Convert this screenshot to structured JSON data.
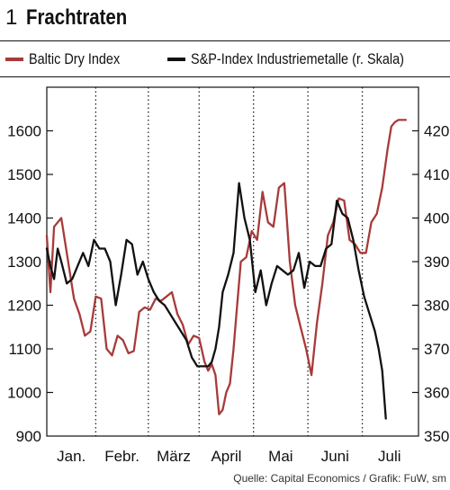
{
  "header": {
    "number": "1",
    "title": "Frachtraten"
  },
  "source": "Quelle: Capital Economics / Grafik: FuW, sm",
  "colors": {
    "baltic": "#a83a3a",
    "sp": "#111111",
    "grid": "#222222",
    "axis": "#111111"
  },
  "chart_data": {
    "type": "line",
    "title": "Frachtraten",
    "x_categories": [
      "Jan.",
      "Febr.",
      "März",
      "April",
      "Mai",
      "Juni",
      "Juli"
    ],
    "x_unit": "days since start of data (approx. 2 Jan)",
    "xlim": [
      0,
      205
    ],
    "y_left": {
      "ylim": [
        900,
        1700
      ],
      "ticks": [
        900,
        1000,
        1100,
        1200,
        1300,
        1400,
        1500,
        1600
      ]
    },
    "y_right": {
      "ylim": [
        350,
        430
      ],
      "ticks": [
        350,
        360,
        370,
        380,
        390,
        400,
        410,
        420
      ],
      "label": "r. Skala"
    },
    "grid": "vertical dotted lines between months",
    "legend_position": "top",
    "series": [
      {
        "name": "Baltic Dry Index",
        "axis": "left",
        "color": "#a83a3a",
        "x": [
          0,
          2,
          4,
          6,
          8,
          11,
          15,
          18,
          21,
          24,
          27,
          30,
          33,
          36,
          39,
          42,
          45,
          48,
          51,
          54,
          57,
          60,
          63,
          66,
          69,
          72,
          75,
          78,
          81,
          84,
          87,
          89,
          91,
          93,
          95,
          97,
          99,
          101,
          103,
          105,
          107,
          110,
          113,
          116,
          119,
          122,
          125,
          128,
          131,
          134,
          137,
          140,
          143,
          146,
          149,
          152,
          155,
          158,
          161,
          164,
          167,
          170,
          173,
          176,
          179,
          182,
          185,
          188,
          190,
          192,
          194,
          196,
          198
        ],
        "values": [
          1360,
          1230,
          1380,
          1390,
          1400,
          1320,
          1215,
          1180,
          1130,
          1140,
          1220,
          1215,
          1100,
          1085,
          1130,
          1120,
          1090,
          1095,
          1185,
          1195,
          1190,
          1215,
          1210,
          1220,
          1230,
          1180,
          1155,
          1110,
          1130,
          1125,
          1070,
          1050,
          1065,
          1040,
          950,
          960,
          1000,
          1020,
          1100,
          1200,
          1300,
          1310,
          1370,
          1350,
          1460,
          1390,
          1380,
          1470,
          1480,
          1300,
          1200,
          1150,
          1100,
          1040,
          1160,
          1250,
          1360,
          1390,
          1445,
          1440,
          1350,
          1340,
          1320,
          1320,
          1390,
          1410,
          1470,
          1560,
          1610,
          1620,
          1625,
          1625,
          1625
        ]
      },
      {
        "name": "S&P-Index Industriemetalle (r. Skala)",
        "axis": "right",
        "color": "#111111",
        "x": [
          0,
          2,
          4,
          6,
          8,
          11,
          14,
          17,
          20,
          23,
          26,
          29,
          32,
          35,
          38,
          41,
          44,
          47,
          50,
          53,
          56,
          59,
          62,
          65,
          68,
          71,
          74,
          77,
          80,
          83,
          86,
          89,
          91,
          93,
          95,
          97,
          100,
          103,
          106,
          109,
          112,
          115,
          118,
          121,
          124,
          127,
          130,
          133,
          136,
          139,
          142,
          145,
          148,
          151,
          154,
          157,
          160,
          163,
          166,
          169,
          172,
          175,
          178,
          181,
          183,
          185,
          187
        ],
        "values": [
          393,
          389,
          386,
          393,
          390,
          385,
          386,
          389,
          392,
          389,
          395,
          393,
          393,
          390,
          380,
          387,
          395,
          394,
          387,
          390,
          386,
          383,
          381,
          380,
          378,
          376,
          374,
          372,
          368,
          366,
          366,
          366,
          367,
          370,
          375,
          383,
          387,
          392,
          408,
          400,
          395,
          383,
          388,
          380,
          385,
          389,
          388,
          387,
          388,
          392,
          384,
          390,
          389,
          389,
          393,
          394,
          404,
          401,
          400,
          395,
          388,
          382,
          378,
          374,
          370,
          365,
          354
        ]
      }
    ]
  }
}
